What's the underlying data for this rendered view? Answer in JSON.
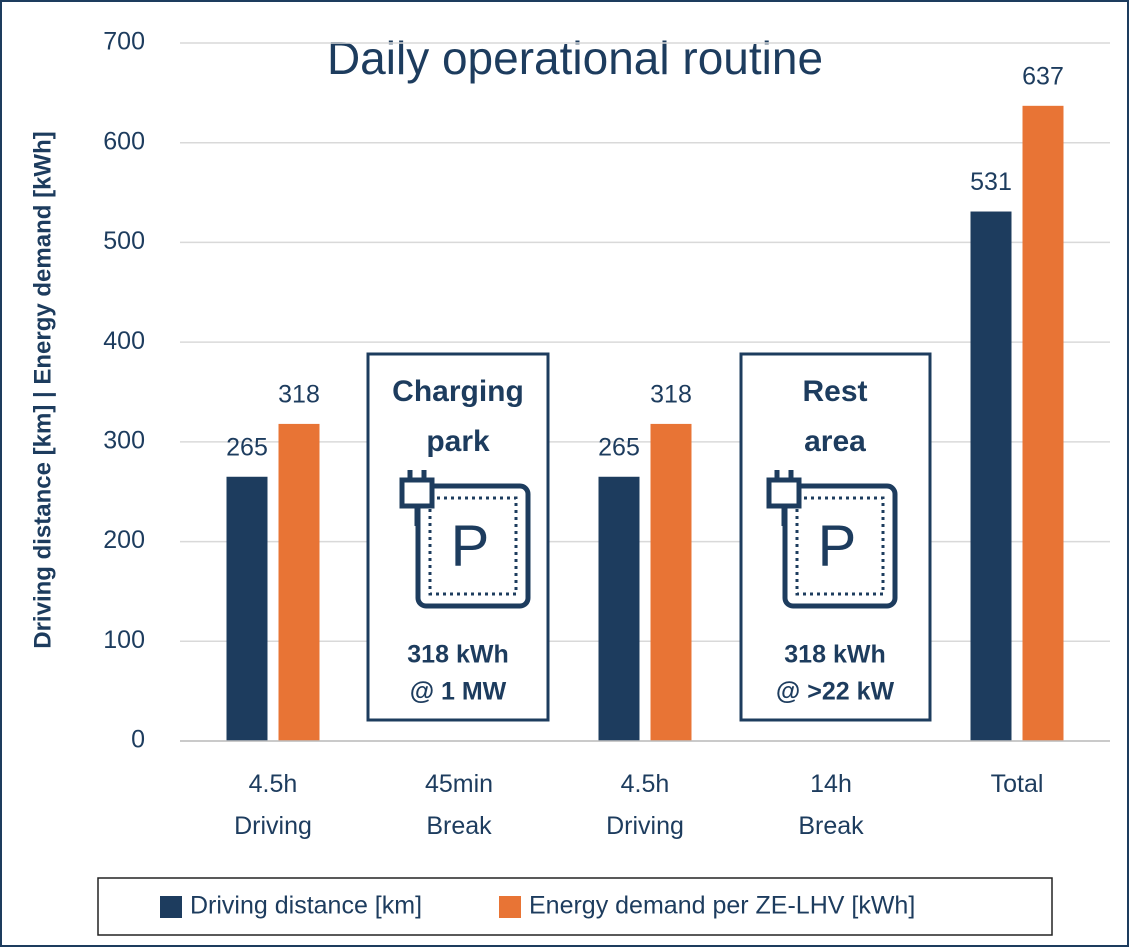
{
  "chart_data": {
    "type": "bar",
    "title": "Daily operational routine",
    "y_label": "Driving distance [km] | Energy demand [kWh]",
    "categories": [
      "4.5h Driving",
      "45min Break",
      "4.5h Driving",
      "14h Break",
      "Total"
    ],
    "series": [
      {
        "name": "Driving distance [km]",
        "color": "#1d3c5e",
        "values": [
          265,
          null,
          265,
          null,
          531
        ]
      },
      {
        "name": "Energy demand per ZE-LHV [kWh]",
        "color": "#e87435",
        "values": [
          318,
          null,
          318,
          null,
          637
        ]
      }
    ],
    "ylim": [
      0,
      700
    ],
    "yticks": [
      0,
      100,
      200,
      300,
      400,
      500,
      600,
      700
    ],
    "grid": true,
    "legend": "bottom",
    "annotations": [
      {
        "heading": [
          "Charging",
          "park"
        ],
        "detail": [
          "318 kWh",
          "@ 1 MW"
        ]
      },
      {
        "heading": [
          "Rest",
          "area"
        ],
        "detail": [
          "318 kWh",
          "@ >22 kW"
        ]
      }
    ]
  }
}
